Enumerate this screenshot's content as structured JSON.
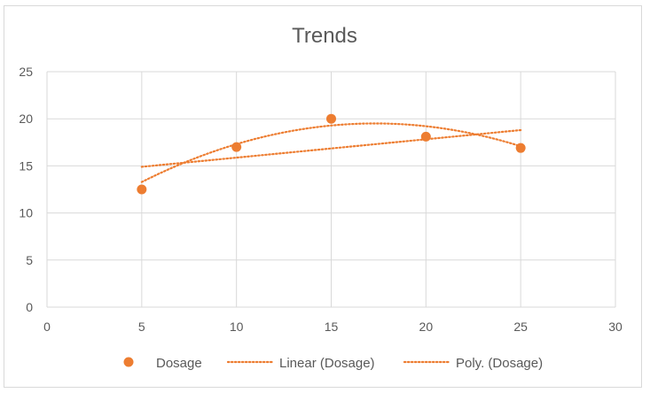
{
  "chart_data": {
    "type": "scatter",
    "title": "Trends",
    "xlabel": "",
    "ylabel": "",
    "xlim": [
      0,
      30
    ],
    "ylim": [
      0,
      25
    ],
    "xticks": [
      0,
      5,
      10,
      15,
      20,
      25,
      30
    ],
    "yticks": [
      0,
      5,
      10,
      15,
      20,
      25
    ],
    "grid": true,
    "legend_position": "bottom",
    "series": [
      {
        "name": "Dosage",
        "type": "scatter",
        "color": "#ED7D31",
        "points": [
          {
            "x": 5,
            "y": 12.5
          },
          {
            "x": 10,
            "y": 17
          },
          {
            "x": 15,
            "y": 20
          },
          {
            "x": 20,
            "y": 18.1
          },
          {
            "x": 25,
            "y": 16.9
          }
        ]
      }
    ],
    "trendlines": [
      {
        "name": "Linear (Dosage)",
        "kind": "linear",
        "color": "#ED7D31",
        "style": "dotted",
        "x_range": [
          5,
          25
        ],
        "y_at_start": 14.9,
        "y_at_end": 18.8
      },
      {
        "name": "Poly. (Dosage)",
        "kind": "polynomial",
        "order": 2,
        "color": "#ED7D31",
        "style": "dotted",
        "x_range": [
          5,
          25
        ],
        "coefficients": [
          7.21,
          1.42,
          -0.041
        ]
      }
    ],
    "legend": [
      "Dosage",
      "Linear (Dosage)",
      "Poly. (Dosage)"
    ]
  },
  "colors": {
    "grid": "#d9d9d9",
    "text": "#595959",
    "series": "#ED7D31"
  }
}
